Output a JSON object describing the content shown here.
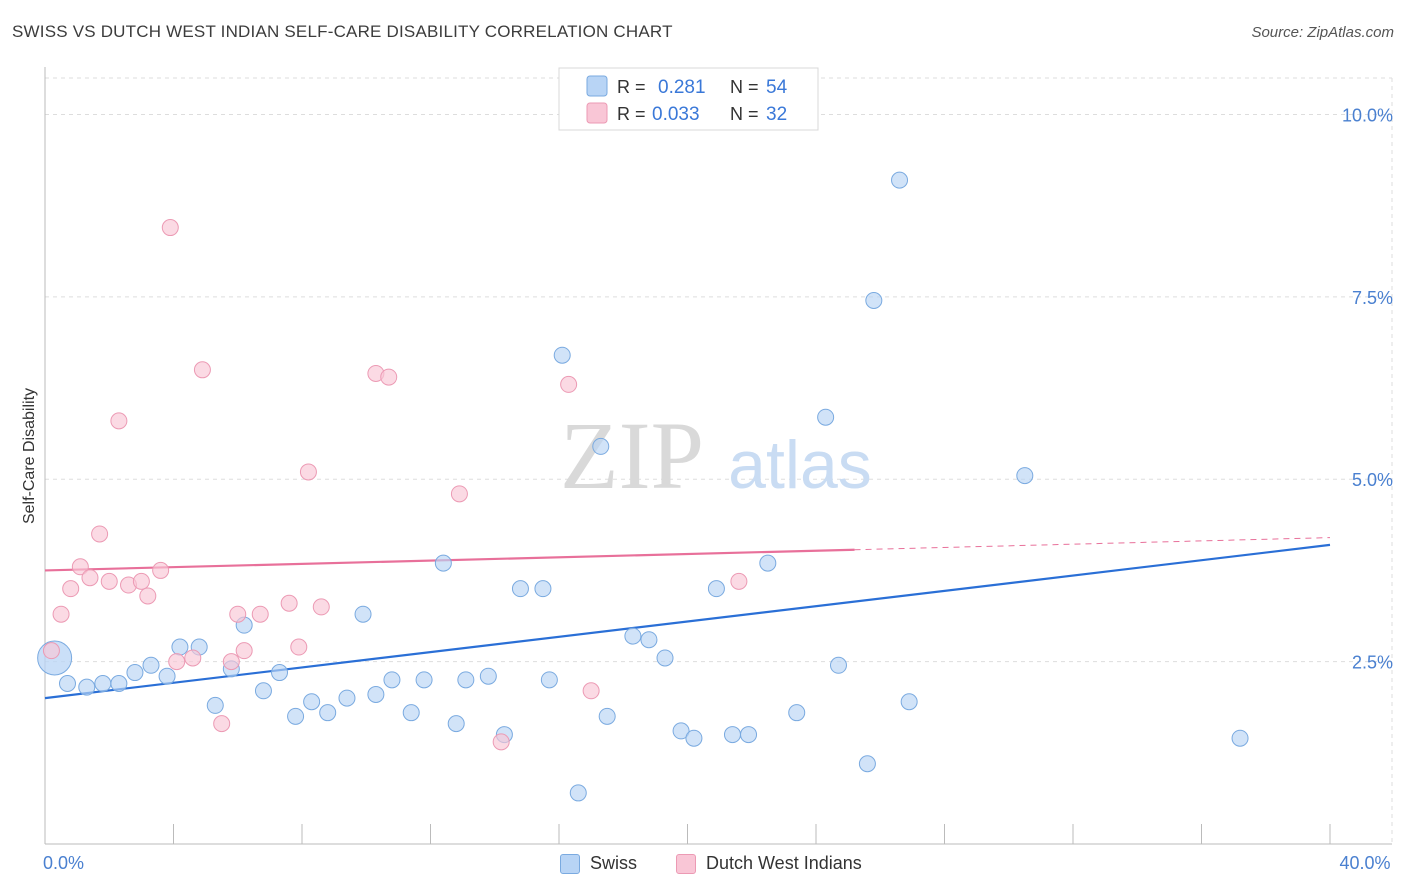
{
  "title": "SWISS VS DUTCH WEST INDIAN SELF-CARE DISABILITY CORRELATION CHART",
  "source": "Source: ZipAtlas.com",
  "watermark": {
    "zip": "ZIP",
    "atlas": "atlas"
  },
  "colors": {
    "swiss_fill": "#b8d4f5",
    "swiss_stroke": "#7aaae0",
    "swiss_line": "#2a6fd6",
    "dutch_fill": "#f9c6d6",
    "dutch_stroke": "#ec9ab4",
    "dutch_line": "#e8709a",
    "tick_label": "#4a80d0",
    "grid": "#dddddd"
  },
  "legend_top": [
    {
      "series": "Swiss",
      "r_label": "R =",
      "r_value": "0.281",
      "n_label": "N =",
      "n_value": "54"
    },
    {
      "series": "Dutch West Indians",
      "r_label": "R =",
      "r_value": "0.033",
      "n_label": "N =",
      "n_value": "32"
    }
  ],
  "chart_data": {
    "type": "scatter",
    "title": "SWISS VS DUTCH WEST INDIAN SELF-CARE DISABILITY CORRELATION CHART",
    "xlabel": "",
    "ylabel": "Self-Care Disability",
    "xlim": [
      0,
      40
    ],
    "ylim": [
      0,
      10.5
    ],
    "x_tick_labels": [
      {
        "value": 0,
        "label": "0.0%"
      },
      {
        "value": 40,
        "label": "40.0%"
      }
    ],
    "y_ticks": [
      {
        "value": 2.5,
        "label": "2.5%"
      },
      {
        "value": 5.0,
        "label": "5.0%"
      },
      {
        "value": 7.5,
        "label": "7.5%"
      },
      {
        "value": 10.0,
        "label": "10.0%"
      }
    ],
    "legend": [
      "Swiss",
      "Dutch West Indians"
    ],
    "series": [
      {
        "name": "Swiss",
        "trend": {
          "x0": 0,
          "y0": 2.0,
          "x1": 40,
          "y1": 4.1,
          "solid_until": 40
        },
        "points": [
          {
            "x": 0.3,
            "y": 2.55,
            "big": true
          },
          {
            "x": 0.7,
            "y": 2.2
          },
          {
            "x": 1.3,
            "y": 2.15
          },
          {
            "x": 1.8,
            "y": 2.2
          },
          {
            "x": 2.3,
            "y": 2.2
          },
          {
            "x": 2.8,
            "y": 2.35
          },
          {
            "x": 3.3,
            "y": 2.45
          },
          {
            "x": 3.8,
            "y": 2.3
          },
          {
            "x": 4.2,
            "y": 2.7
          },
          {
            "x": 4.8,
            "y": 2.7
          },
          {
            "x": 5.3,
            "y": 1.9
          },
          {
            "x": 5.8,
            "y": 2.4
          },
          {
            "x": 6.2,
            "y": 3.0
          },
          {
            "x": 6.8,
            "y": 2.1
          },
          {
            "x": 7.3,
            "y": 2.35
          },
          {
            "x": 7.8,
            "y": 1.75
          },
          {
            "x": 8.3,
            "y": 1.95
          },
          {
            "x": 8.8,
            "y": 1.8
          },
          {
            "x": 9.4,
            "y": 2.0
          },
          {
            "x": 9.9,
            "y": 3.15
          },
          {
            "x": 10.3,
            "y": 2.05
          },
          {
            "x": 10.8,
            "y": 2.25
          },
          {
            "x": 11.4,
            "y": 1.8
          },
          {
            "x": 11.8,
            "y": 2.25
          },
          {
            "x": 12.4,
            "y": 3.85
          },
          {
            "x": 12.8,
            "y": 1.65
          },
          {
            "x": 13.1,
            "y": 2.25
          },
          {
            "x": 13.8,
            "y": 2.3
          },
          {
            "x": 14.3,
            "y": 1.5
          },
          {
            "x": 14.8,
            "y": 3.5
          },
          {
            "x": 15.5,
            "y": 3.5
          },
          {
            "x": 15.7,
            "y": 2.25
          },
          {
            "x": 16.1,
            "y": 6.7
          },
          {
            "x": 16.6,
            "y": 0.7
          },
          {
            "x": 17.3,
            "y": 5.45
          },
          {
            "x": 17.5,
            "y": 1.75
          },
          {
            "x": 18.3,
            "y": 2.85
          },
          {
            "x": 18.8,
            "y": 2.8
          },
          {
            "x": 19.3,
            "y": 2.55
          },
          {
            "x": 19.8,
            "y": 1.55
          },
          {
            "x": 20.2,
            "y": 1.45
          },
          {
            "x": 20.9,
            "y": 3.5
          },
          {
            "x": 21.4,
            "y": 1.5
          },
          {
            "x": 21.9,
            "y": 1.5
          },
          {
            "x": 22.5,
            "y": 3.85
          },
          {
            "x": 23.4,
            "y": 1.8
          },
          {
            "x": 24.3,
            "y": 5.85
          },
          {
            "x": 24.7,
            "y": 2.45
          },
          {
            "x": 25.6,
            "y": 1.1
          },
          {
            "x": 25.8,
            "y": 7.45
          },
          {
            "x": 26.6,
            "y": 9.1
          },
          {
            "x": 26.9,
            "y": 1.95
          },
          {
            "x": 30.5,
            "y": 5.05
          },
          {
            "x": 37.2,
            "y": 1.45
          }
        ]
      },
      {
        "name": "Dutch West Indians",
        "trend": {
          "x0": 0,
          "y0": 3.75,
          "x1": 40,
          "y1": 4.2,
          "solid_until": 25.2
        },
        "points": [
          {
            "x": 0.2,
            "y": 2.65
          },
          {
            "x": 0.5,
            "y": 3.15
          },
          {
            "x": 0.8,
            "y": 3.5
          },
          {
            "x": 1.1,
            "y": 3.8
          },
          {
            "x": 1.4,
            "y": 3.65
          },
          {
            "x": 1.7,
            "y": 4.25
          },
          {
            "x": 2.0,
            "y": 3.6
          },
          {
            "x": 2.3,
            "y": 5.8
          },
          {
            "x": 2.6,
            "y": 3.55
          },
          {
            "x": 3.0,
            "y": 3.6
          },
          {
            "x": 3.2,
            "y": 3.4
          },
          {
            "x": 3.6,
            "y": 3.75
          },
          {
            "x": 3.9,
            "y": 8.45
          },
          {
            "x": 4.1,
            "y": 2.5
          },
          {
            "x": 4.6,
            "y": 2.55
          },
          {
            "x": 4.9,
            "y": 6.5
          },
          {
            "x": 5.5,
            "y": 1.65
          },
          {
            "x": 5.8,
            "y": 2.5
          },
          {
            "x": 6.0,
            "y": 3.15
          },
          {
            "x": 6.2,
            "y": 2.65
          },
          {
            "x": 6.7,
            "y": 3.15
          },
          {
            "x": 7.6,
            "y": 3.3
          },
          {
            "x": 7.9,
            "y": 2.7
          },
          {
            "x": 8.2,
            "y": 5.1
          },
          {
            "x": 8.6,
            "y": 3.25
          },
          {
            "x": 10.3,
            "y": 6.45
          },
          {
            "x": 10.7,
            "y": 6.4
          },
          {
            "x": 12.9,
            "y": 4.8
          },
          {
            "x": 14.2,
            "y": 1.4
          },
          {
            "x": 16.3,
            "y": 6.3
          },
          {
            "x": 17.0,
            "y": 2.1
          },
          {
            "x": 21.6,
            "y": 3.6
          }
        ]
      }
    ]
  }
}
